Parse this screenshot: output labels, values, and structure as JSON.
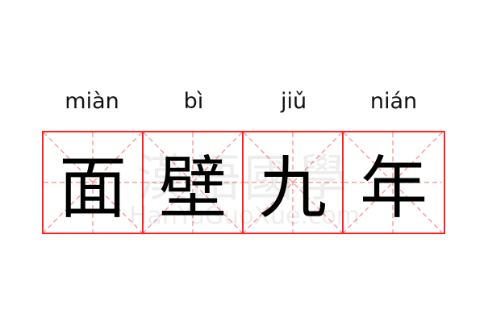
{
  "pinyin": [
    "miàn",
    "bì",
    "jiǔ",
    "nián"
  ],
  "characters": [
    "面",
    "壁",
    "九",
    "年"
  ],
  "watermark": {
    "cn": "漢語國學",
    "en": "HanYuGuoXue.com"
  },
  "colors": {
    "grid": "#ff2222",
    "guides": "#f7a0a0"
  }
}
